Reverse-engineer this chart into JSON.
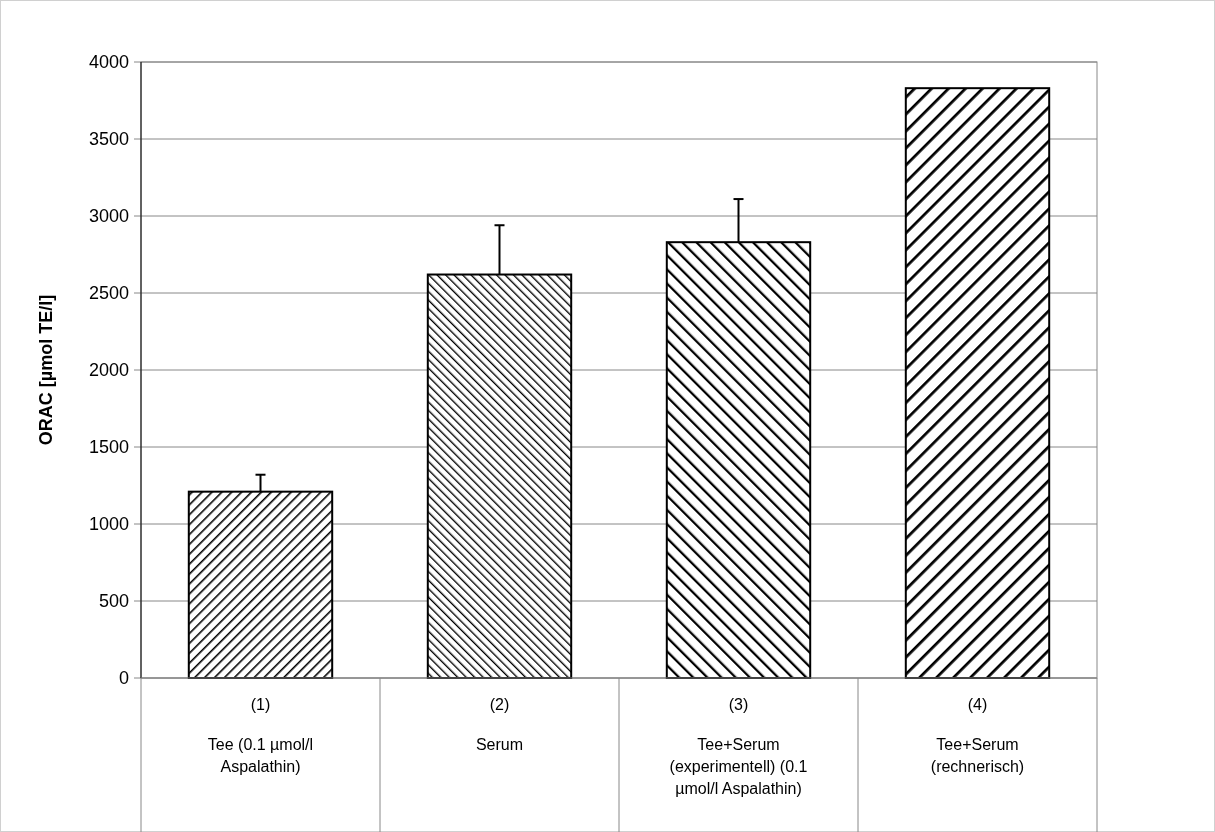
{
  "chart_data": {
    "type": "bar",
    "ylabel": "ORAC [µmol TE/l]",
    "categories": [
      "(1)\nTee (0.1 µmol/l Aspalathin)",
      "(2)\nSerum",
      "(3)\nTee+Serum (experimentell) (0.1 µmol/l Aspalathin)",
      "(4)\nTee+Serum (rechnerisch)"
    ],
    "values": [
      1210,
      2620,
      2830,
      3830
    ],
    "colors": [
      "#000000",
      "#000000",
      "#000000",
      "#000000"
    ],
    "errors": [
      [
        1210,
        1320
      ],
      [
        2620,
        2940
      ],
      [
        2830,
        3110
      ],
      null
    ],
    "ylim": [
      0,
      4000
    ],
    "yticks": [
      0,
      500,
      1000,
      1500,
      2000,
      2500,
      3000,
      3500,
      4000
    ],
    "grid": "y"
  }
}
